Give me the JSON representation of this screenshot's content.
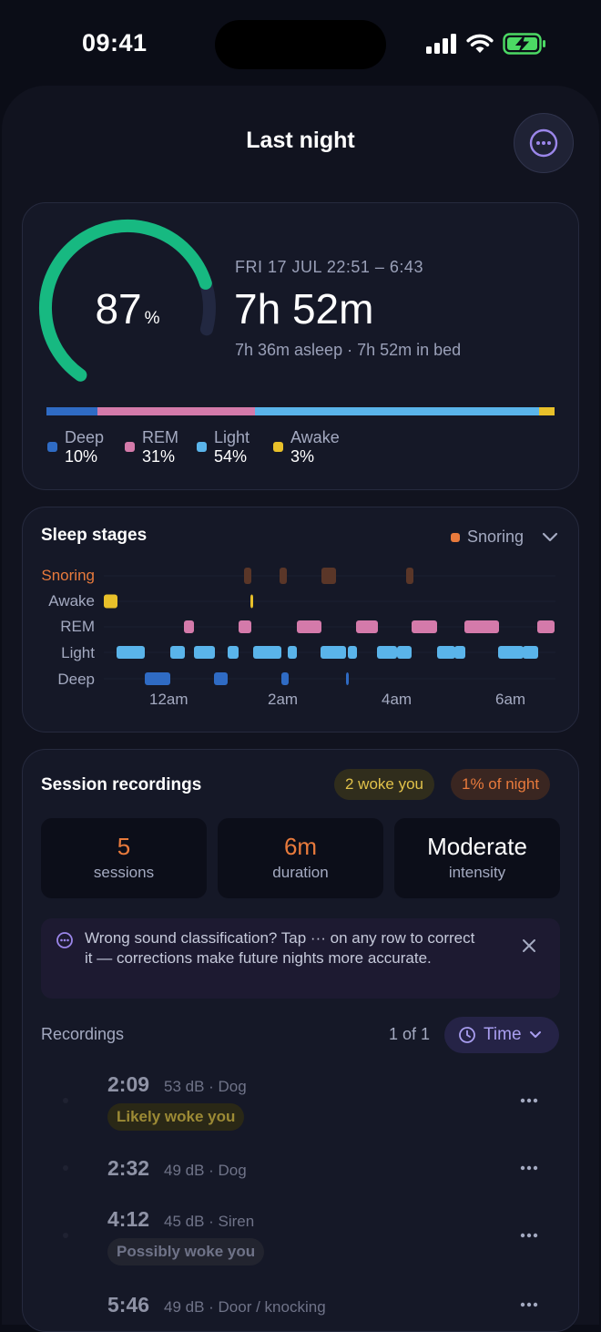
{
  "status": {
    "time": "09:41"
  },
  "header": {
    "title": "Last night"
  },
  "summary": {
    "score": "87",
    "score_unit": "%",
    "score_fraction": 0.87,
    "date_range": "FRI 17 JUL  22:51 – 6:43",
    "duration": "7h 52m",
    "sub": "7h 36m asleep · 7h 52m in bed",
    "stages": [
      {
        "name": "Deep",
        "value": "10%",
        "fraction": 0.1,
        "color": "#2f6bc4"
      },
      {
        "name": "REM",
        "value": "31%",
        "fraction": 0.31,
        "color": "#d47aaa"
      },
      {
        "name": "Light",
        "value": "54%",
        "fraction": 0.54,
        "color": "#5ab4ea"
      },
      {
        "name": "Awake",
        "value": "3%",
        "fraction": 0.03,
        "color": "#e8c02a"
      }
    ]
  },
  "stages_card": {
    "title": "Sleep stages",
    "filter_label": "Snoring",
    "rows": [
      "Snoring",
      "Awake",
      "REM",
      "Light",
      "Deep"
    ],
    "time_ticks": [
      "12am",
      "2am",
      "4am",
      "6am"
    ],
    "colors": {
      "snoring": "#5a3628",
      "awake": "#e8c02a",
      "rem": "#d47aaa",
      "light": "#5ab4ea",
      "deep": "#2f6bc4",
      "snoring_label": "#e87a3c"
    }
  },
  "sessions": {
    "title": "Session recordings",
    "woke_pill": "2 woke you",
    "night_pill": "1% of night",
    "stats": [
      {
        "value": "5",
        "label": "sessions",
        "color": "#e87a3c"
      },
      {
        "value": "6m",
        "label": "duration",
        "color": "#e87a3c"
      },
      {
        "value": "Moderate",
        "label": "intensity",
        "color": "#ffffff"
      }
    ],
    "tip": "Wrong sound classification? Tap ··· on any row to correct it — corrections make future nights more accurate.",
    "recordings_label": "Recordings",
    "page_count": "1 of 1",
    "sort_label": "Time",
    "recordings": [
      {
        "time": "2:09",
        "meta": "53 dB · Dog",
        "badge": "Likely woke you",
        "badge_type": "yellow"
      },
      {
        "time": "2:32",
        "meta": "49 dB · Dog",
        "badge": "",
        "badge_type": ""
      },
      {
        "time": "4:12",
        "meta": "45 dB · Siren",
        "badge": "Possibly woke you",
        "badge_type": "grey"
      },
      {
        "time": "5:46",
        "meta": "49 dB · Door / knocking",
        "badge": "",
        "badge_type": ""
      }
    ]
  }
}
